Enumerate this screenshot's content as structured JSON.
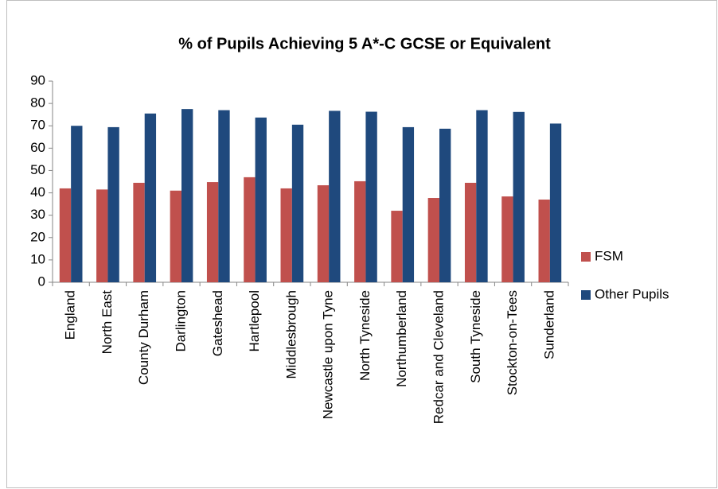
{
  "chart_data": {
    "type": "bar",
    "title": "% of Pupils Achieving 5 A*-C GCSE or Equivalent",
    "categories": [
      "England",
      "North East",
      "County Durham",
      "Darlington",
      "Gateshead",
      "Hartlepool",
      "Middlesbrough",
      "Newcastle upon Tyne",
      "North Tyneside",
      "Northumberland",
      "Redcar and Cleveland",
      "South Tyneside",
      "Stockton-on-Tees",
      "Sunderland"
    ],
    "series": [
      {
        "name": "FSM",
        "color": "#c0504d",
        "values": [
          42,
          41.5,
          44.5,
          41,
          44.8,
          47,
          42,
          43.4,
          45.2,
          32,
          37.7,
          44.5,
          38.4,
          37
        ]
      },
      {
        "name": "Other Pupils",
        "color": "#1f497d",
        "values": [
          70,
          69.4,
          75.5,
          77.5,
          77,
          73.7,
          70.5,
          76.7,
          76.3,
          69.4,
          68.7,
          77,
          76.2,
          71
        ]
      }
    ],
    "ylim": [
      0,
      90
    ],
    "yticks": [
      0,
      10,
      20,
      30,
      40,
      50,
      60,
      70,
      80,
      90
    ],
    "legend": "right"
  }
}
